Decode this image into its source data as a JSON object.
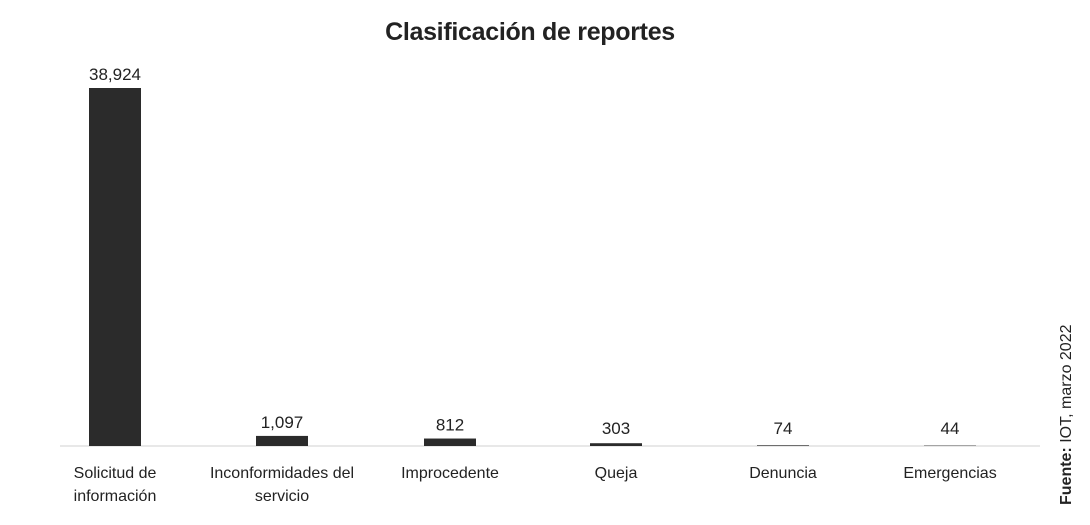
{
  "chart_data": {
    "type": "bar",
    "title": "Clasificación de reportes",
    "categories": [
      "Solicitud de información",
      "Inconformidades del servicio",
      "Improcedente",
      "Queja",
      "Denuncia",
      "Emergencias"
    ],
    "values": [
      38924,
      1097,
      812,
      303,
      74,
      44
    ],
    "value_labels": [
      "38,924",
      "1,097",
      "812",
      "303",
      "74",
      "44"
    ],
    "color": "#2b2b2b",
    "source_label": "Fuente:",
    "source": "IOT, marzo 2022"
  }
}
